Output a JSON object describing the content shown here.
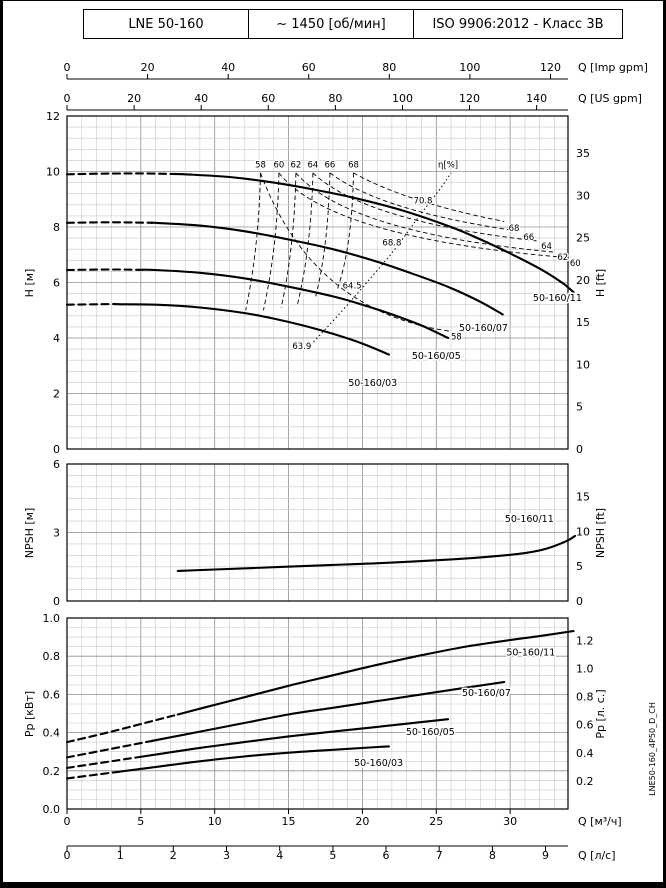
{
  "header": {
    "model": "LNE 50-160",
    "speed": "~ 1450 [об/мин]",
    "standard": "ISO 9906:2012 - Класс 3В"
  },
  "watermark": "LNE50-160_4P50_D_CH",
  "axes": {
    "top": [
      {
        "name": "imp-gpm",
        "unit": "Q [Imp gpm]",
        "ticks": [
          0,
          20,
          40,
          60,
          80,
          100,
          120
        ],
        "to_m3h": 0.27277
      },
      {
        "name": "us-gpm",
        "unit": "Q [US gpm]",
        "ticks": [
          0,
          20,
          40,
          60,
          80,
          100,
          120,
          140
        ],
        "to_m3h": 0.22712
      }
    ],
    "bottom": [
      {
        "name": "m3h",
        "unit": "Q [м³/ч]",
        "ticks": [
          0,
          5,
          10,
          15,
          20,
          25,
          30
        ],
        "to_m3h": 1
      },
      {
        "name": "ls",
        "unit": "Q [л/с]",
        "ticks": [
          0,
          1,
          2,
          3,
          4,
          5,
          6,
          7,
          8,
          9
        ],
        "to_m3h": 3.6
      }
    ]
  },
  "chart_data": [
    {
      "id": "head",
      "type": "line",
      "ylabel_left": "H [м]",
      "ylabel_right": "H [ft]",
      "xlabel": "Q [м³/ч]",
      "xlim": [
        0,
        33.9
      ],
      "ylim": [
        0,
        12
      ],
      "yticks": [
        0,
        2,
        4,
        6,
        8,
        10,
        12
      ],
      "yticks_right": {
        "unit": "ft",
        "values": [
          0,
          5,
          10,
          15,
          20,
          25,
          30,
          35
        ],
        "to_m": 0.3048
      },
      "grid": {
        "x_minor": 1,
        "x_major": 5,
        "y_minor": 0.4,
        "y_major": 2
      },
      "series": [
        {
          "name": "50-160/11",
          "dash_until": 7.5,
          "label_at": [
            33.2,
            5.45
          ],
          "points": [
            [
              0,
              9.9
            ],
            [
              2,
              9.92
            ],
            [
              5,
              9.93
            ],
            [
              8,
              9.9
            ],
            [
              11,
              9.8
            ],
            [
              14,
              9.6
            ],
            [
              17,
              9.32
            ],
            [
              20,
              8.98
            ],
            [
              23,
              8.55
            ],
            [
              26,
              8.0
            ],
            [
              28,
              7.55
            ],
            [
              30,
              7.05
            ],
            [
              32,
              6.5
            ],
            [
              33.5,
              6.0
            ],
            [
              34.3,
              5.65
            ]
          ]
        },
        {
          "name": "50-160/07",
          "dash_until": 5.8,
          "label_at": [
            28.2,
            4.36
          ],
          "points": [
            [
              0,
              8.15
            ],
            [
              3,
              8.17
            ],
            [
              6,
              8.15
            ],
            [
              9,
              8.05
            ],
            [
              12,
              7.85
            ],
            [
              15,
              7.55
            ],
            [
              18,
              7.2
            ],
            [
              21,
              6.75
            ],
            [
              24,
              6.2
            ],
            [
              26,
              5.8
            ],
            [
              28,
              5.3
            ],
            [
              29.5,
              4.85
            ]
          ]
        },
        {
          "name": "50-160/05",
          "dash_until": 4.9,
          "label_at": [
            25.0,
            3.35
          ],
          "points": [
            [
              0,
              6.45
            ],
            [
              3,
              6.47
            ],
            [
              6,
              6.45
            ],
            [
              9,
              6.35
            ],
            [
              12,
              6.15
            ],
            [
              15,
              5.85
            ],
            [
              18,
              5.5
            ],
            [
              20,
              5.2
            ],
            [
              22,
              4.85
            ],
            [
              24,
              4.45
            ],
            [
              25.8,
              4.0
            ]
          ]
        },
        {
          "name": "50-160/03",
          "dash_until": 3.6,
          "label_at": [
            20.7,
            2.38
          ],
          "points": [
            [
              0,
              5.2
            ],
            [
              3,
              5.22
            ],
            [
              6,
              5.2
            ],
            [
              9,
              5.1
            ],
            [
              12,
              4.9
            ],
            [
              14,
              4.7
            ],
            [
              16,
              4.45
            ],
            [
              18,
              4.15
            ],
            [
              20,
              3.8
            ],
            [
              21.8,
              3.4
            ]
          ]
        }
      ],
      "efficiency": {
        "eta_label": "η[%]",
        "eta_label_at": [
          25.8,
          10.25
        ],
        "apex_h": 9.95,
        "top_labels": [
          {
            "v": "58",
            "q": 13.1
          },
          {
            "v": "60",
            "q": 14.35
          },
          {
            "v": "62",
            "q": 15.5
          },
          {
            "v": "64",
            "q": 16.65
          },
          {
            "v": "66",
            "q": 17.8
          },
          {
            "v": "68",
            "q": 19.4
          }
        ],
        "contours": [
          {
            "v": "58",
            "apex_q": 13.1,
            "left_end": [
              12.1,
              5.0
            ],
            "right_end": [
              25.9,
              4.25
            ],
            "right_label": [
              26.0,
              4.05
            ]
          },
          {
            "v": "60",
            "apex_q": 14.35,
            "left_end": [
              13.3,
              5.0
            ],
            "right_end": [
              33.8,
              6.9
            ],
            "right_label": [
              34.05,
              6.7
            ]
          },
          {
            "v": "62",
            "apex_q": 15.5,
            "left_end": [
              14.5,
              5.1
            ],
            "right_end": [
              32.9,
              7.1
            ],
            "right_label": [
              33.2,
              6.92
            ]
          },
          {
            "v": "64",
            "apex_q": 16.65,
            "left_end": [
              15.6,
              5.2
            ],
            "right_end": [
              31.8,
              7.5
            ],
            "right_label": [
              32.1,
              7.32
            ]
          },
          {
            "v": "66",
            "apex_q": 17.8,
            "left_end": [
              16.8,
              5.4
            ],
            "right_end": [
              30.6,
              7.85
            ],
            "right_label": [
              30.9,
              7.64
            ]
          },
          {
            "v": "68",
            "apex_q": 19.4,
            "left_end": [
              18.3,
              5.75
            ],
            "right_end": [
              29.6,
              8.2
            ],
            "right_label": [
              29.9,
              7.96
            ]
          }
        ],
        "bep_locus": [
          [
            16.5,
            3.75
          ],
          [
            18.5,
            4.9
          ],
          [
            20.3,
            6.0
          ],
          [
            22.2,
            7.2
          ],
          [
            24.0,
            8.5
          ],
          [
            25.3,
            9.4
          ],
          [
            26.0,
            9.95
          ]
        ],
        "bep_labels": [
          {
            "v": "70.8",
            "at": [
              24.1,
              8.95
            ]
          },
          {
            "v": "68.8",
            "at": [
              22.0,
              7.45
            ]
          },
          {
            "v": "64.5",
            "at": [
              19.3,
              5.9
            ]
          },
          {
            "v": "63.9",
            "at": [
              15.9,
              3.72
            ]
          }
        ]
      }
    },
    {
      "id": "npsh",
      "type": "line",
      "ylabel_left": "NPSH [м]",
      "ylabel_right": "NPSH [ft]",
      "xlabel": "Q [м³/ч]",
      "xlim": [
        0,
        33.9
      ],
      "ylim": [
        0,
        6
      ],
      "yticks": [
        0,
        3,
        6
      ],
      "yticks_right": {
        "unit": "ft",
        "values": [
          0,
          5,
          10,
          15
        ],
        "to_m": 0.3048
      },
      "grid": {
        "x_minor": 1,
        "x_major": 5,
        "y_minor": 0.5,
        "y_major": 3
      },
      "series": [
        {
          "name": "50-160/11",
          "dash_until": 0,
          "label_at": [
            31.3,
            3.6
          ],
          "points": [
            [
              7.5,
              1.32
            ],
            [
              10,
              1.38
            ],
            [
              14,
              1.48
            ],
            [
              18,
              1.58
            ],
            [
              22,
              1.68
            ],
            [
              26,
              1.82
            ],
            [
              29,
              1.96
            ],
            [
              31,
              2.1
            ],
            [
              32.5,
              2.3
            ],
            [
              33.8,
              2.62
            ],
            [
              34.4,
              2.85
            ]
          ]
        }
      ]
    },
    {
      "id": "power",
      "type": "line",
      "ylabel_left": "Pp [кВт]",
      "ylabel_right": "Pp [л. с.]",
      "xlabel": "Q [м³/ч]",
      "xlim": [
        0,
        33.9
      ],
      "ylim": [
        0,
        1.0
      ],
      "yticks": [
        "0.0",
        "0.2",
        "0.4",
        "0.6",
        "0.8",
        "1.0"
      ],
      "yticks_right": {
        "unit": "л.с.",
        "values": [
          "0.2",
          "0.4",
          "0.6",
          "0.8",
          "1.0",
          "1.2"
        ],
        "to_m": 0.7355
      },
      "grid": {
        "x_minor": 1,
        "x_major": 5,
        "y_minor": 0.05,
        "y_major": 0.2
      },
      "series": [
        {
          "name": "50-160/11",
          "dash_until": 7.5,
          "label_at": [
            31.4,
            0.82
          ],
          "points": [
            [
              0,
              0.35
            ],
            [
              3,
              0.405
            ],
            [
              6,
              0.465
            ],
            [
              9,
              0.525
            ],
            [
              12,
              0.585
            ],
            [
              15,
              0.645
            ],
            [
              18,
              0.7
            ],
            [
              21,
              0.755
            ],
            [
              24,
              0.805
            ],
            [
              27,
              0.85
            ],
            [
              30,
              0.885
            ],
            [
              32,
              0.905
            ],
            [
              34.3,
              0.932
            ]
          ]
        },
        {
          "name": "50-160/07",
          "dash_until": 5.8,
          "label_at": [
            28.4,
            0.607
          ],
          "points": [
            [
              0,
              0.27
            ],
            [
              3,
              0.315
            ],
            [
              6,
              0.36
            ],
            [
              9,
              0.405
            ],
            [
              12,
              0.45
            ],
            [
              15,
              0.495
            ],
            [
              18,
              0.53
            ],
            [
              21,
              0.565
            ],
            [
              24,
              0.6
            ],
            [
              27,
              0.635
            ],
            [
              29.6,
              0.665
            ]
          ]
        },
        {
          "name": "50-160/05",
          "dash_until": 4.9,
          "label_at": [
            24.6,
            0.403
          ],
          "points": [
            [
              0,
              0.215
            ],
            [
              3,
              0.25
            ],
            [
              6,
              0.285
            ],
            [
              9,
              0.32
            ],
            [
              12,
              0.35
            ],
            [
              15,
              0.38
            ],
            [
              18,
              0.405
            ],
            [
              21,
              0.43
            ],
            [
              24,
              0.455
            ],
            [
              25.8,
              0.47
            ]
          ]
        },
        {
          "name": "50-160/03",
          "dash_until": 3.6,
          "label_at": [
            21.1,
            0.241
          ],
          "points": [
            [
              0,
              0.16
            ],
            [
              3,
              0.19
            ],
            [
              6,
              0.22
            ],
            [
              9,
              0.25
            ],
            [
              12,
              0.275
            ],
            [
              15,
              0.295
            ],
            [
              18,
              0.31
            ],
            [
              20.5,
              0.322
            ],
            [
              21.8,
              0.328
            ]
          ]
        }
      ]
    }
  ]
}
